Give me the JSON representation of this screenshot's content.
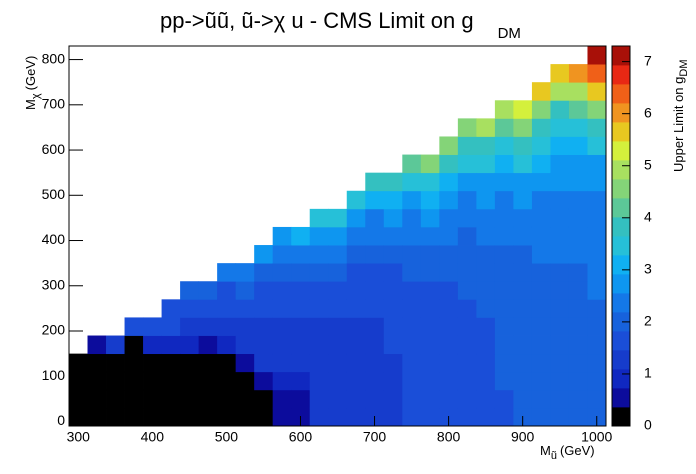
{
  "chart_data": {
    "type": "heatmap",
    "title": "pp->ũũ, ũ->χ u - CMS Limit on g",
    "title_sub": "DM",
    "x_label": "M",
    "x_label_sub": "ũ",
    "x_label_unit": "(GeV)",
    "y_label": "M",
    "y_label_sub": "χ",
    "y_label_unit": "(GeV)",
    "z_label": "Upper Limit on g",
    "z_label_sub": "DM",
    "x": [
      300,
      325,
      350,
      375,
      400,
      425,
      450,
      475,
      500,
      525,
      550,
      575,
      600,
      625,
      650,
      675,
      700,
      725,
      750,
      775,
      800,
      825,
      850,
      875,
      900,
      925,
      950,
      975,
      1000
    ],
    "y": [
      10,
      50,
      90,
      130,
      170,
      210,
      250,
      290,
      330,
      370,
      410,
      450,
      490,
      530,
      570,
      610,
      650,
      690,
      730,
      770,
      810
    ],
    "xlim": [
      287.5,
      1012.5
    ],
    "ylim": [
      -10,
      830
    ],
    "zlim": [
      0,
      7.3
    ],
    "xticks": [
      300,
      400,
      500,
      600,
      700,
      800,
      900,
      1000
    ],
    "yticks": [
      0,
      100,
      200,
      300,
      400,
      500,
      600,
      700,
      800
    ],
    "zticks": [
      0,
      1,
      2,
      3,
      4,
      5,
      6,
      7
    ],
    "palette": [
      "#000000",
      "#0c0c9c",
      "#1028c0",
      "#163ccc",
      "#1a4ed8",
      "#1762dc",
      "#1478e8",
      "#0e96f0",
      "#10b0f2",
      "#26c0d8",
      "#34c0c0",
      "#5cc898",
      "#84d478",
      "#a8e060",
      "#d4f03c",
      "#e8c820",
      "#f09420",
      "#f06018",
      "#e82814",
      "#a81008"
    ],
    "z": [
      [
        0.2,
        0.2,
        0.2,
        0.3,
        null,
        null,
        null,
        null,
        null,
        null,
        null,
        null,
        null,
        null,
        null,
        null,
        null,
        null,
        null,
        null,
        null
      ],
      [
        0.2,
        0.2,
        0.2,
        0.2,
        0.6,
        null,
        null,
        null,
        null,
        null,
        null,
        null,
        null,
        null,
        null,
        null,
        null,
        null,
        null,
        null,
        null
      ],
      [
        0.2,
        0.2,
        0.2,
        0.2,
        1.4,
        null,
        null,
        null,
        null,
        null,
        null,
        null,
        null,
        null,
        null,
        null,
        null,
        null,
        null,
        null,
        null
      ],
      [
        0.2,
        0.2,
        0.2,
        0.2,
        0.3,
        1.5,
        null,
        null,
        null,
        null,
        null,
        null,
        null,
        null,
        null,
        null,
        null,
        null,
        null,
        null,
        null
      ],
      [
        0.2,
        0.2,
        0.2,
        0.2,
        1.0,
        1.6,
        null,
        null,
        null,
        null,
        null,
        null,
        null,
        null,
        null,
        null,
        null,
        null,
        null,
        null,
        null
      ],
      [
        0.2,
        0.2,
        0.2,
        0.2,
        1.0,
        1.5,
        1.8,
        null,
        null,
        null,
        null,
        null,
        null,
        null,
        null,
        null,
        null,
        null,
        null,
        null,
        null
      ],
      [
        0.2,
        0.2,
        0.2,
        0.2,
        0.9,
        1.4,
        1.6,
        1.9,
        null,
        null,
        null,
        null,
        null,
        null,
        null,
        null,
        null,
        null,
        null,
        null,
        null
      ],
      [
        0.2,
        0.2,
        0.2,
        0.2,
        0.7,
        1.4,
        1.6,
        2.0,
        null,
        null,
        null,
        null,
        null,
        null,
        null,
        null,
        null,
        null,
        null,
        null,
        null
      ],
      [
        0.2,
        0.2,
        0.2,
        0.3,
        1.0,
        1.4,
        1.6,
        1.8,
        2.3,
        null,
        null,
        null,
        null,
        null,
        null,
        null,
        null,
        null,
        null,
        null,
        null
      ],
      [
        0.2,
        0.2,
        0.2,
        0.6,
        1.1,
        1.4,
        1.6,
        1.9,
        2.5,
        null,
        null,
        null,
        null,
        null,
        null,
        null,
        null,
        null,
        null,
        null,
        null
      ],
      [
        0.2,
        0.2,
        0.5,
        1.1,
        1.2,
        1.4,
        1.6,
        1.8,
        2.1,
        2.7,
        null,
        null,
        null,
        null,
        null,
        null,
        null,
        null,
        null,
        null,
        null
      ],
      [
        0.7,
        0.7,
        0.8,
        1.2,
        1.3,
        1.4,
        1.6,
        1.8,
        2.0,
        2.3,
        2.9,
        null,
        null,
        null,
        null,
        null,
        null,
        null,
        null,
        null,
        null
      ],
      [
        0.7,
        0.7,
        0.8,
        1.2,
        1.3,
        1.4,
        1.6,
        1.8,
        2.1,
        2.5,
        3.0,
        null,
        null,
        null,
        null,
        null,
        null,
        null,
        null,
        null,
        null
      ],
      [
        1.2,
        1.2,
        1.2,
        1.3,
        1.3,
        1.4,
        1.5,
        1.7,
        1.9,
        2.2,
        2.6,
        3.3,
        null,
        null,
        null,
        null,
        null,
        null,
        null,
        null,
        null
      ],
      [
        1.2,
        1.2,
        1.2,
        1.3,
        1.3,
        1.4,
        1.5,
        1.7,
        2.0,
        2.3,
        2.8,
        3.5,
        null,
        null,
        null,
        null,
        null,
        null,
        null,
        null,
        null
      ],
      [
        1.3,
        1.3,
        1.3,
        1.3,
        1.4,
        1.4,
        1.5,
        1.6,
        1.8,
        2.0,
        2.3,
        2.9,
        3.6,
        null,
        null,
        null,
        null,
        null,
        null,
        null,
        null
      ],
      [
        1.3,
        1.3,
        1.3,
        1.4,
        1.4,
        1.4,
        1.5,
        1.6,
        1.7,
        1.9,
        2.2,
        2.5,
        3.1,
        3.8,
        null,
        null,
        null,
        null,
        null,
        null,
        null
      ],
      [
        1.4,
        1.4,
        1.4,
        1.4,
        1.5,
        1.5,
        1.6,
        1.7,
        1.8,
        2.0,
        2.3,
        2.7,
        3.2,
        4.0,
        null,
        null,
        null,
        null,
        null,
        null,
        null
      ],
      [
        1.6,
        1.6,
        1.6,
        1.6,
        1.6,
        1.6,
        1.7,
        1.8,
        1.9,
        2.0,
        2.2,
        2.5,
        2.9,
        3.5,
        4.2,
        null,
        null,
        null,
        null,
        null,
        null
      ],
      [
        1.6,
        1.6,
        1.6,
        1.6,
        1.6,
        1.7,
        1.7,
        1.8,
        1.9,
        2.1,
        2.3,
        2.6,
        3.0,
        3.6,
        4.4,
        null,
        null,
        null,
        null,
        null,
        null
      ],
      [
        1.7,
        1.7,
        1.7,
        1.7,
        1.7,
        1.7,
        1.8,
        1.8,
        1.9,
        2.0,
        2.2,
        2.4,
        2.7,
        3.1,
        3.7,
        4.5,
        null,
        null,
        null,
        null,
        null
      ],
      [
        1.7,
        1.7,
        1.7,
        1.7,
        1.7,
        1.8,
        1.8,
        1.9,
        1.9,
        2.0,
        2.1,
        2.3,
        2.5,
        2.8,
        3.3,
        3.9,
        4.7,
        null,
        null,
        null,
        null
      ],
      [
        1.8,
        1.8,
        1.8,
        1.8,
        1.8,
        1.8,
        1.9,
        1.9,
        2.0,
        2.1,
        2.2,
        2.4,
        2.6,
        2.9,
        3.4,
        4.0,
        4.9,
        null,
        null,
        null,
        null
      ],
      [
        1.8,
        1.8,
        1.9,
        1.9,
        1.9,
        1.9,
        1.9,
        2.0,
        2.0,
        2.1,
        2.2,
        2.3,
        2.5,
        2.8,
        3.2,
        3.6,
        4.3,
        5.1,
        null,
        null,
        null
      ],
      [
        1.9,
        1.9,
        1.9,
        1.9,
        1.9,
        2.0,
        2.0,
        2.0,
        2.1,
        2.1,
        2.2,
        2.4,
        2.6,
        2.9,
        3.3,
        3.7,
        4.4,
        5.3,
        null,
        null,
        null
      ],
      [
        2.0,
        2.0,
        2.0,
        2.0,
        2.0,
        2.0,
        2.0,
        2.1,
        2.1,
        2.2,
        2.3,
        2.4,
        2.5,
        2.7,
        3.0,
        3.4,
        3.9,
        4.6,
        5.5,
        null,
        null
      ],
      [
        2.0,
        2.0,
        2.0,
        2.0,
        2.0,
        2.0,
        2.1,
        2.1,
        2.1,
        2.2,
        2.2,
        2.3,
        2.4,
        2.6,
        2.8,
        3.1,
        3.5,
        4.0,
        4.8,
        5.7,
        null
      ],
      [
        2.0,
        2.0,
        2.0,
        2.0,
        2.0,
        2.0,
        2.1,
        2.1,
        2.1,
        2.2,
        2.3,
        2.4,
        2.5,
        2.7,
        2.9,
        3.2,
        3.6,
        4.2,
        5.0,
        6.2,
        null
      ],
      [
        2.1,
        2.1,
        2.1,
        2.1,
        2.1,
        2.1,
        2.1,
        2.2,
        2.2,
        2.2,
        2.3,
        2.4,
        2.5,
        2.7,
        2.9,
        3.4,
        3.9,
        4.6,
        5.5,
        6.3,
        7.1
      ]
    ]
  }
}
